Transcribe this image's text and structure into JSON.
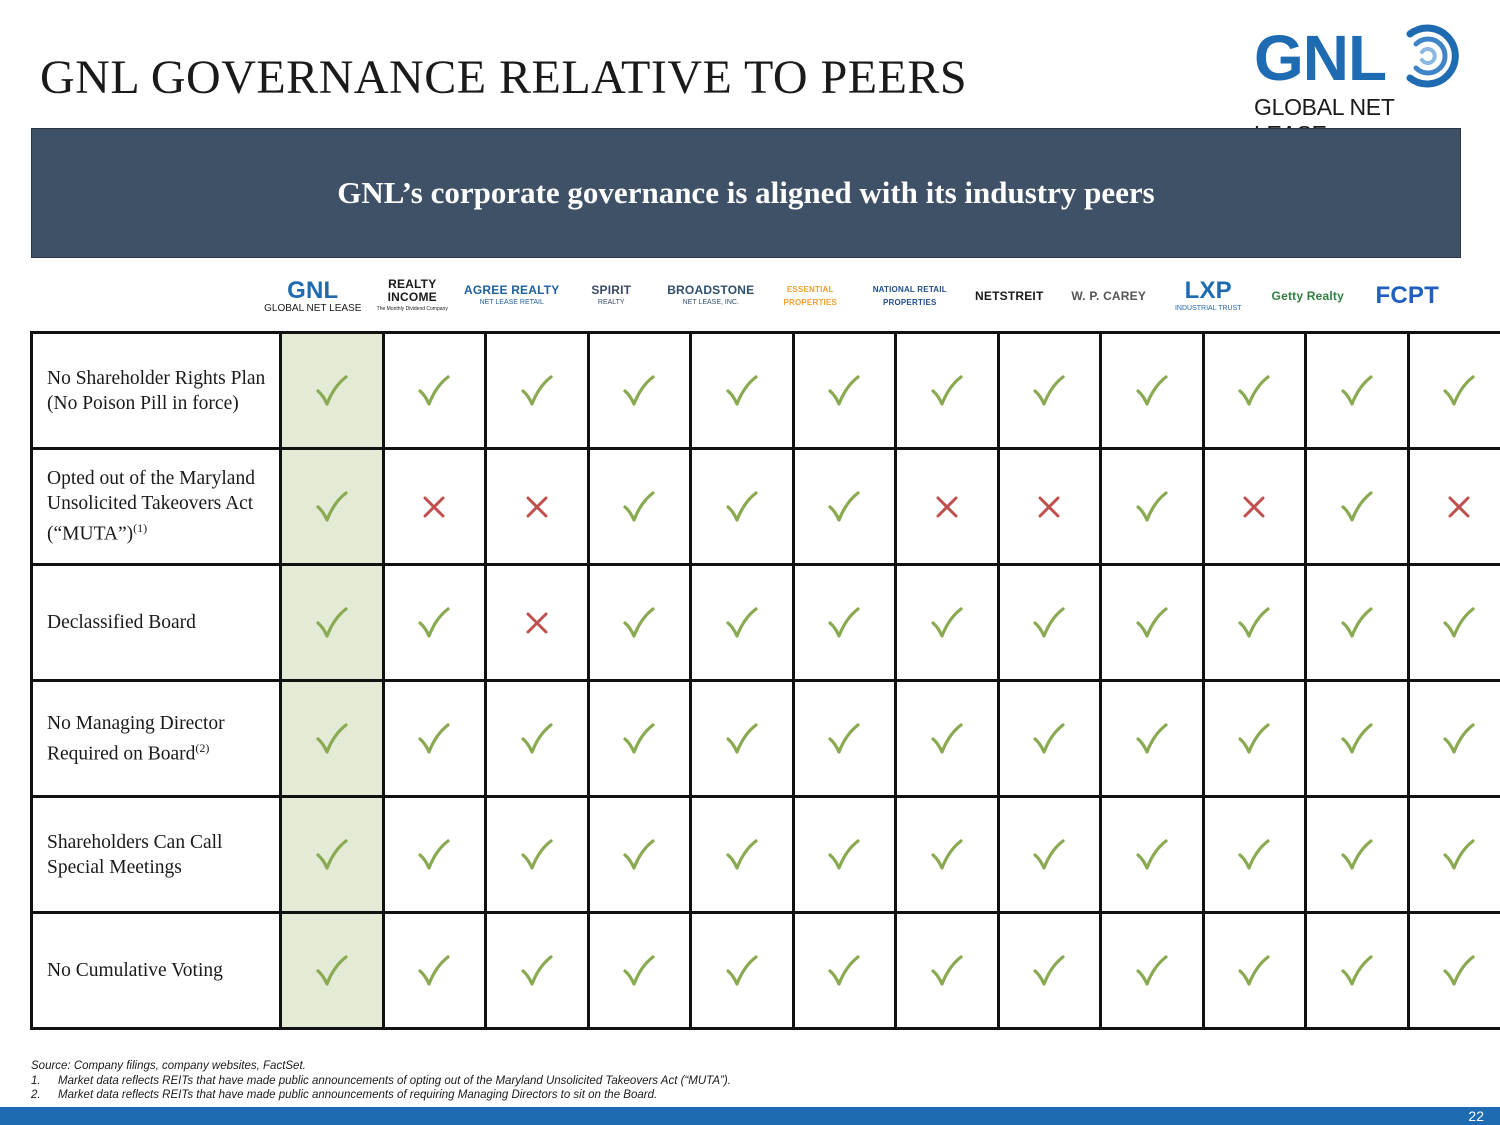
{
  "title": "GNL GOVERNANCE RELATIVE TO PEERS",
  "brand": {
    "logo_text": "GNL",
    "logo_subtext": "GLOBAL NET LEASE",
    "color": "#1f6bb2"
  },
  "banner": {
    "text": "GNL’s corporate governance is aligned with its industry peers",
    "background": "#3f5166"
  },
  "peers": [
    {
      "name": "GNL",
      "sub": "GLOBAL NET LEASE",
      "icon": "gnl-logo",
      "color": "#1f6bb2"
    },
    {
      "name": "REALTY INCOME",
      "sub": "The Monthly Dividend Company",
      "icon": "realty-income-logo",
      "color": "#1a1a1a"
    },
    {
      "name": "AGREE REALTY",
      "sub": "NET LEASE RETAIL",
      "icon": "agree-realty-logo",
      "color": "#1f5f9f"
    },
    {
      "name": "SPIRIT",
      "sub": "REALTY",
      "icon": "spirit-realty-logo",
      "color": "#3a4a66"
    },
    {
      "name": "BROADSTONE",
      "sub": "NET LEASE, INC.",
      "icon": "broadstone-logo",
      "color": "#2f4f6f"
    },
    {
      "name": "ESSENTIAL PROPERTIES",
      "sub": "",
      "icon": "essential-properties-logo",
      "color": "#f0a030"
    },
    {
      "name": "NATIONAL RETAIL PROPERTIES",
      "sub": "",
      "icon": "national-retail-properties-logo",
      "color": "#1f4f8f"
    },
    {
      "name": "NETSTREIT",
      "sub": "",
      "icon": "netstreit-logo",
      "color": "#1a1a1a"
    },
    {
      "name": "W. P. CAREY",
      "sub": "",
      "icon": "wp-carey-logo",
      "color": "#555555"
    },
    {
      "name": "LXP",
      "sub": "INDUSTRIAL TRUST",
      "icon": "lxp-logo",
      "color": "#1f6bb2"
    },
    {
      "name": "Getty Realty",
      "sub": "",
      "icon": "getty-realty-logo",
      "color": "#2f7f3f"
    },
    {
      "name": "FCPT",
      "sub": "",
      "icon": "fcpt-logo",
      "color": "#1f5fbf"
    }
  ],
  "rows": [
    {
      "label": "No Shareholder Rights Plan (No Poison Pill in force)",
      "sup": "",
      "marks": [
        1,
        1,
        1,
        1,
        1,
        1,
        1,
        1,
        1,
        1,
        1,
        1
      ]
    },
    {
      "label": "Opted out of the Maryland Unsolicited Takeovers Act (“MUTA”)",
      "sup": "(1)",
      "marks": [
        1,
        0,
        0,
        1,
        1,
        1,
        0,
        0,
        1,
        0,
        1,
        0
      ]
    },
    {
      "label": "Declassified Board",
      "sup": "",
      "marks": [
        1,
        1,
        0,
        1,
        1,
        1,
        1,
        1,
        1,
        1,
        1,
        1
      ]
    },
    {
      "label": "No Managing Director Required on Board",
      "sup": "(2)",
      "marks": [
        1,
        1,
        1,
        1,
        1,
        1,
        1,
        1,
        1,
        1,
        1,
        1
      ]
    },
    {
      "label": "Shareholders Can Call Special Meetings",
      "sup": "",
      "marks": [
        1,
        1,
        1,
        1,
        1,
        1,
        1,
        1,
        1,
        1,
        1,
        1
      ]
    },
    {
      "label": "No Cumulative Voting",
      "sup": "",
      "marks": [
        1,
        1,
        1,
        1,
        1,
        1,
        1,
        1,
        1,
        1,
        1,
        1
      ]
    }
  ],
  "colors": {
    "check": "#8aaa52",
    "cross": "#c0504d",
    "gnl_highlight": "#e3ead6"
  },
  "source": "Source: Company filings, company websites, FactSet.",
  "notes": [
    {
      "num": "1.",
      "text": "Market data reflects REITs that have made public announcements of opting out of the Maryland Unsolicited Takeovers Act (“MUTA”)."
    },
    {
      "num": "2.",
      "text": "Market data reflects REITs that have made public announcements of requiring Managing Directors to sit on the Board."
    }
  ],
  "page_number": "22"
}
